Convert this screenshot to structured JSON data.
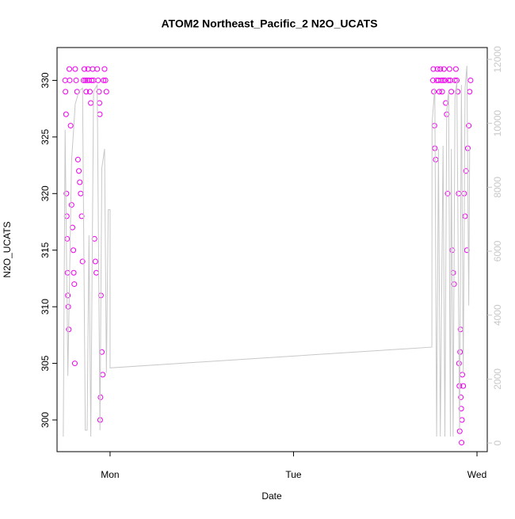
{
  "chart_data": {
    "type": "scatter",
    "title": "ATOM2 Northeast_Pacific_2 N2O_UCATS",
    "xlabel": "Date",
    "ylabel": "N2O_UCATS",
    "xlim": [
      -0.289,
      2.056
    ],
    "xticks": [
      {
        "value": 0,
        "label": "Mon"
      },
      {
        "value": 1,
        "label": "Tue"
      },
      {
        "value": 2,
        "label": "Wed"
      }
    ],
    "ylim": [
      297.2,
      332.9
    ],
    "yticks": [
      300,
      305,
      310,
      315,
      320,
      325,
      330
    ],
    "y2lim": [
      -270,
      12370
    ],
    "y2ticks": [
      0,
      2000,
      4000,
      6000,
      8000,
      10000,
      12000
    ],
    "series": [
      {
        "type": "scatter",
        "color": "#ee00ee",
        "x": [
          -0.245,
          -0.243,
          -0.24,
          -0.238,
          -0.236,
          -0.234,
          -0.232,
          -0.23,
          -0.228,
          -0.225,
          -0.222,
          -0.22,
          -0.215,
          -0.21,
          -0.205,
          -0.2,
          -0.198,
          -0.195,
          -0.192,
          -0.19,
          -0.185,
          -0.18,
          -0.175,
          -0.17,
          -0.165,
          -0.16,
          -0.155,
          -0.15,
          -0.145,
          -0.14,
          -0.135,
          -0.13,
          -0.125,
          -0.12,
          -0.115,
          -0.11,
          -0.105,
          -0.1,
          -0.095,
          -0.09,
          -0.085,
          -0.08,
          -0.075,
          -0.07,
          -0.065,
          -0.06,
          -0.058,
          -0.056,
          -0.054,
          -0.052,
          -0.05,
          -0.045,
          -0.04,
          -0.035,
          -0.03,
          -0.025,
          -0.02,
          1.76,
          1.762,
          1.765,
          1.768,
          1.77,
          1.775,
          1.78,
          1.785,
          1.79,
          1.795,
          1.8,
          1.805,
          1.81,
          1.815,
          1.82,
          1.825,
          1.83,
          1.835,
          1.84,
          1.845,
          1.85,
          1.855,
          1.86,
          1.865,
          1.87,
          1.875,
          1.88,
          1.885,
          1.89,
          1.895,
          1.9,
          1.902,
          1.904,
          1.906,
          1.908,
          1.91,
          1.912,
          1.914,
          1.916,
          1.918,
          1.92,
          1.925,
          1.93,
          1.935,
          1.94,
          1.945,
          1.95,
          1.955,
          1.96,
          1.965
        ],
        "values": [
          330,
          329,
          327,
          320,
          318,
          316,
          313,
          311,
          310,
          308,
          331,
          330,
          326,
          319,
          317,
          315,
          313,
          312,
          305,
          331,
          330,
          329,
          323,
          322,
          321,
          320,
          318,
          314,
          330,
          331,
          330,
          329,
          330,
          331,
          330,
          329,
          328,
          330,
          331,
          330,
          316,
          314,
          313,
          331,
          330,
          329,
          328,
          327,
          300,
          302,
          311,
          306,
          304,
          330,
          331,
          330,
          329,
          330,
          331,
          329,
          326,
          324,
          323,
          330,
          331,
          330,
          329,
          331,
          330,
          329,
          330,
          331,
          330,
          328,
          327,
          320,
          330,
          331,
          330,
          329,
          315,
          313,
          312,
          330,
          331,
          330,
          329,
          320,
          305,
          303,
          299,
          306,
          308,
          302,
          301,
          298,
          300,
          304,
          303,
          320,
          318,
          322,
          315,
          324,
          326,
          329,
          330
        ]
      },
      {
        "type": "line",
        "axis": "y2",
        "color": "#c8c8c8",
        "x": [
          -0.255,
          -0.245,
          -0.23,
          -0.21,
          -0.19,
          -0.17,
          -0.15,
          -0.135,
          -0.125,
          -0.115,
          -0.105,
          -0.09,
          -0.07,
          -0.055,
          -0.045,
          -0.03,
          -0.02,
          -0.01,
          0.0,
          0.0,
          1.754,
          1.755,
          1.77,
          1.78,
          1.79,
          1.8,
          1.815,
          1.825,
          1.835,
          1.845,
          1.855,
          1.86,
          1.87,
          1.88,
          1.89,
          1.905,
          1.915,
          1.925,
          1.935,
          1.945,
          1.955,
          1.96
        ],
        "values": [
          200,
          9800,
          2100,
          8800,
          10600,
          11000,
          11100,
          400,
          400,
          6500,
          200,
          11000,
          11200,
          400,
          8600,
          9200,
          2200,
          7300,
          7300,
          2350,
          3000,
          10000,
          11100,
          200,
          9200,
          200,
          9300,
          200,
          10400,
          11000,
          200,
          9200,
          200,
          10800,
          11300,
          300,
          11200,
          2200,
          11100,
          11800,
          4300,
          9200
        ]
      }
    ]
  }
}
